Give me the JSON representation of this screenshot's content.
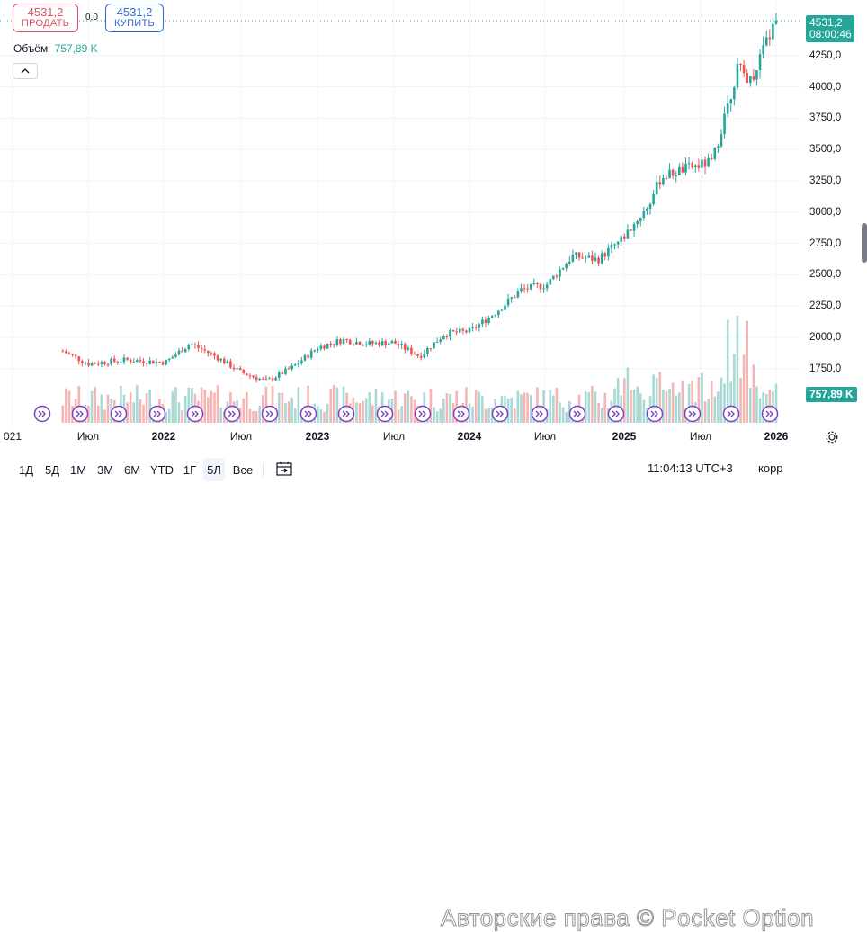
{
  "toolbar": {
    "sell": {
      "price": "4531,2",
      "label": "ПРОДАТЬ"
    },
    "spread": "0,0",
    "buy": {
      "price": "4531,2",
      "label": "КУПИТЬ"
    },
    "volume_label": "Объём",
    "volume_value": "757,89 K",
    "collapse_icon": "chevron-up-icon"
  },
  "price_axis": {
    "ticks": [
      "4250,0",
      "4000,0",
      "3750,0",
      "3500,0",
      "3250,0",
      "3000,0",
      "2750,0",
      "2500,0",
      "2250,0",
      "2000,0",
      "1750,0"
    ],
    "last_price": "4531,2",
    "countdown": "08:00:46",
    "volume_tag": "757,89 K"
  },
  "time_axis": {
    "ticks": [
      "021",
      "Июл",
      "2022",
      "Июл",
      "2023",
      "Июл",
      "2024",
      "Июл",
      "2025",
      "Июл",
      "2026"
    ]
  },
  "bottom_bar": {
    "timeframes": [
      "1Д",
      "5Д",
      "1М",
      "3М",
      "6М",
      "YTD",
      "1Г",
      "5Л",
      "Все"
    ],
    "active_timeframe": "5Л",
    "clock": "11:04:13 UTC+3",
    "correction_label": "корр",
    "watermark": "Авторские права © Pocket Option"
  },
  "colors": {
    "up": "#26a69a",
    "down": "#ef5350",
    "accent": "#2962ff",
    "marker": "#7b3fc9"
  },
  "chart_data": {
    "type": "candlestick",
    "x": [
      "2021-05",
      "2021-07",
      "2021-10",
      "2022-01",
      "2022-03",
      "2022-05",
      "2022-07",
      "2022-09",
      "2022-11",
      "2023-01",
      "2023-03",
      "2023-05",
      "2023-07",
      "2023-09",
      "2023-11",
      "2024-01",
      "2024-03",
      "2024-05",
      "2024-07",
      "2024-09",
      "2024-11",
      "2025-01",
      "2025-03",
      "2025-04",
      "2025-06",
      "2025-08",
      "2025-10",
      "2025-11",
      "2026-01"
    ],
    "close": [
      1890,
      1790,
      1820,
      1800,
      1950,
      1850,
      1720,
      1650,
      1760,
      1920,
      1980,
      1950,
      1960,
      1850,
      2030,
      2050,
      2200,
      2380,
      2420,
      2650,
      2620,
      2800,
      3050,
      3280,
      3350,
      3400,
      4150,
      4050,
      4531.2
    ],
    "ylim": [
      1600,
      4550
    ],
    "volume_last": "757,89 K",
    "series": [
      {
        "name": "Объём",
        "last": "757,89 K"
      }
    ]
  }
}
